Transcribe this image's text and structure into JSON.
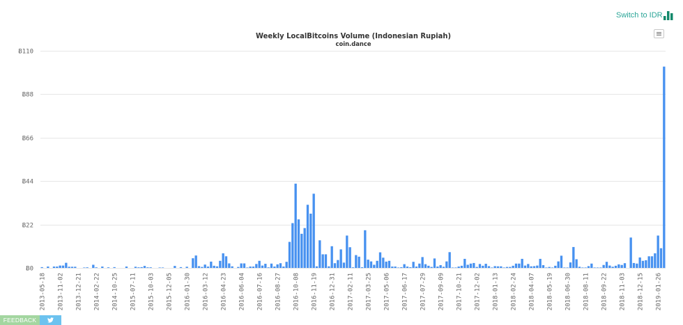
{
  "header": {
    "switch_label": "Switch to IDR",
    "switch_icon": "bar-chart-icon",
    "accent_color": "#2aa597",
    "icon_color": "#12896b"
  },
  "chart": {
    "menu_icon": "hamburger-menu-icon",
    "gridline_color": "#e6e6e6"
  },
  "chart_data": {
    "type": "bar",
    "title": "Weekly LocalBitcoins Volume (Indonesian Rupiah)",
    "subtitle": "coin.dance",
    "xlabel": "",
    "ylabel": "",
    "ylim": [
      0,
      110
    ],
    "grid": true,
    "legend": null,
    "bar_color": "#4791f0",
    "y_ticks": [
      0,
      22,
      44,
      66,
      88,
      110
    ],
    "y_tick_labels": [
      "Ƀ0",
      "Ƀ22",
      "Ƀ44",
      "Ƀ66",
      "Ƀ88",
      "Ƀ110"
    ],
    "x_tick_every": 6,
    "x_tick_labels": [
      "2013-05-18",
      "2013-11-02",
      "2013-12-21",
      "2014-02-22",
      "2014-10-25",
      "2015-07-11",
      "2015-10-03",
      "2015-12-05",
      "2016-01-30",
      "2016-03-12",
      "2016-04-23",
      "2016-06-04",
      "2016-07-16",
      "2016-08-27",
      "2016-10-08",
      "2016-11-19",
      "2016-12-31",
      "2017-02-11",
      "2017-03-25",
      "2017-05-06",
      "2017-06-17",
      "2017-07-29",
      "2017-09-09",
      "2017-10-21",
      "2017-12-02",
      "2018-01-13",
      "2018-02-24",
      "2018-04-07",
      "2018-05-19",
      "2018-06-30",
      "2018-08-11",
      "2018-09-22",
      "2018-11-03",
      "2018-12-15",
      "2019-01-26"
    ],
    "values": [
      0.4,
      0,
      0.7,
      0,
      0.7,
      0.7,
      1.2,
      1.2,
      2.6,
      0.6,
      0.6,
      0.6,
      0,
      0,
      0.2,
      0.3,
      0,
      1.6,
      0.3,
      0,
      0.7,
      0,
      0.3,
      0,
      0.4,
      0,
      0,
      0,
      0.7,
      0,
      0,
      0.6,
      0.3,
      0.4,
      1.0,
      0.3,
      0.3,
      0,
      0,
      0.15,
      0.15,
      0,
      0,
      0,
      1.0,
      0,
      0.4,
      0,
      0.6,
      0,
      4.9,
      6.3,
      0.9,
      0.5,
      1.7,
      0.7,
      3.2,
      1.1,
      0.8,
      3.6,
      7.4,
      5.9,
      2.3,
      0.8,
      0,
      0.5,
      2.3,
      2.3,
      0.1,
      0.7,
      0.7,
      2.0,
      3.6,
      1.2,
      2.1,
      0.3,
      2.2,
      0.7,
      1.8,
      2.4,
      0.7,
      3.1,
      13.2,
      22.7,
      42.7,
      24.6,
      17.3,
      20.2,
      32.0,
      27.5,
      37.6,
      0.8,
      14.0,
      6.9,
      6.9,
      0.8,
      11.0,
      2.4,
      4.0,
      9.4,
      2.7,
      16.4,
      10.5,
      0.3,
      6.5,
      5.7,
      0.35,
      19.1,
      4.2,
      3.3,
      1.6,
      3.6,
      7.9,
      5.2,
      3.2,
      3.6,
      0.7,
      0.7,
      0.1,
      0.35,
      1.9,
      0.7,
      0.35,
      3.1,
      0.7,
      2.2,
      5.5,
      1.9,
      1.1,
      0.5,
      4.8,
      0.7,
      1.4,
      0.6,
      3.3,
      8.0,
      0.15,
      0.15,
      0.7,
      1.1,
      4.6,
      1.6,
      2.2,
      2.5,
      0.5,
      2.0,
      1.1,
      2.1,
      0.9,
      0.1,
      0.9,
      0.8,
      0.8,
      0.2,
      0.5,
      0.5,
      1.1,
      2.2,
      2.2,
      4.6,
      1.2,
      2.0,
      0.8,
      0.9,
      1.2,
      4.6,
      1.4,
      0.1,
      0.5,
      0.1,
      1.1,
      3.3,
      6.2,
      0.05,
      0.1,
      2.8,
      10.6,
      4.4,
      0.6,
      0.1,
      0.1,
      0.9,
      2.2,
      0.1,
      0.1,
      0.1,
      1.5,
      3.1,
      1.2,
      0.6,
      1.1,
      1.8,
      1.5,
      2.4,
      0,
      15.4,
      2.5,
      2.2,
      5.3,
      3.6,
      3.9,
      5.9,
      5.9,
      7.4,
      16.4,
      10.0,
      102.0
    ]
  },
  "footer": {
    "feedback_label": "FEEDBACK",
    "feedback_color": "#a3d6a0",
    "twitter_icon": "twitter-bird-icon",
    "twitter_color": "#6cc2ef"
  }
}
